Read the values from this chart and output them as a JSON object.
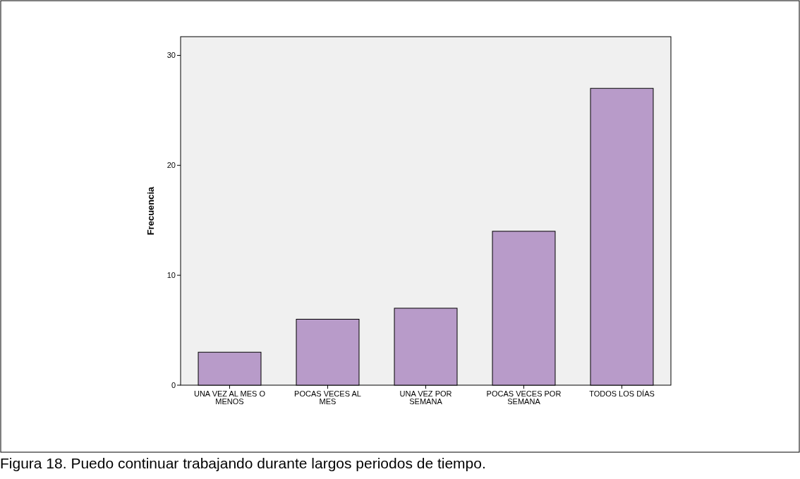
{
  "chart_data": {
    "type": "bar",
    "ylabel": "Frecuencia",
    "categories": [
      "UNA VEZ AL MES O MENOS",
      "POCAS VECES AL MES",
      "UNA VEZ POR SEMANA",
      "POCAS VECES POR SEMANA",
      "TODOS LOS DÍAS"
    ],
    "values": [
      3,
      6,
      7,
      14,
      27
    ],
    "color": "#b89bc9",
    "ylim": [
      0,
      31.7
    ],
    "yticks": [
      0,
      10,
      20,
      30
    ],
    "grid": false,
    "annotations": [
      "Figura 18. Puedo continuar trabajando durante largos periodos de tiempo."
    ]
  }
}
